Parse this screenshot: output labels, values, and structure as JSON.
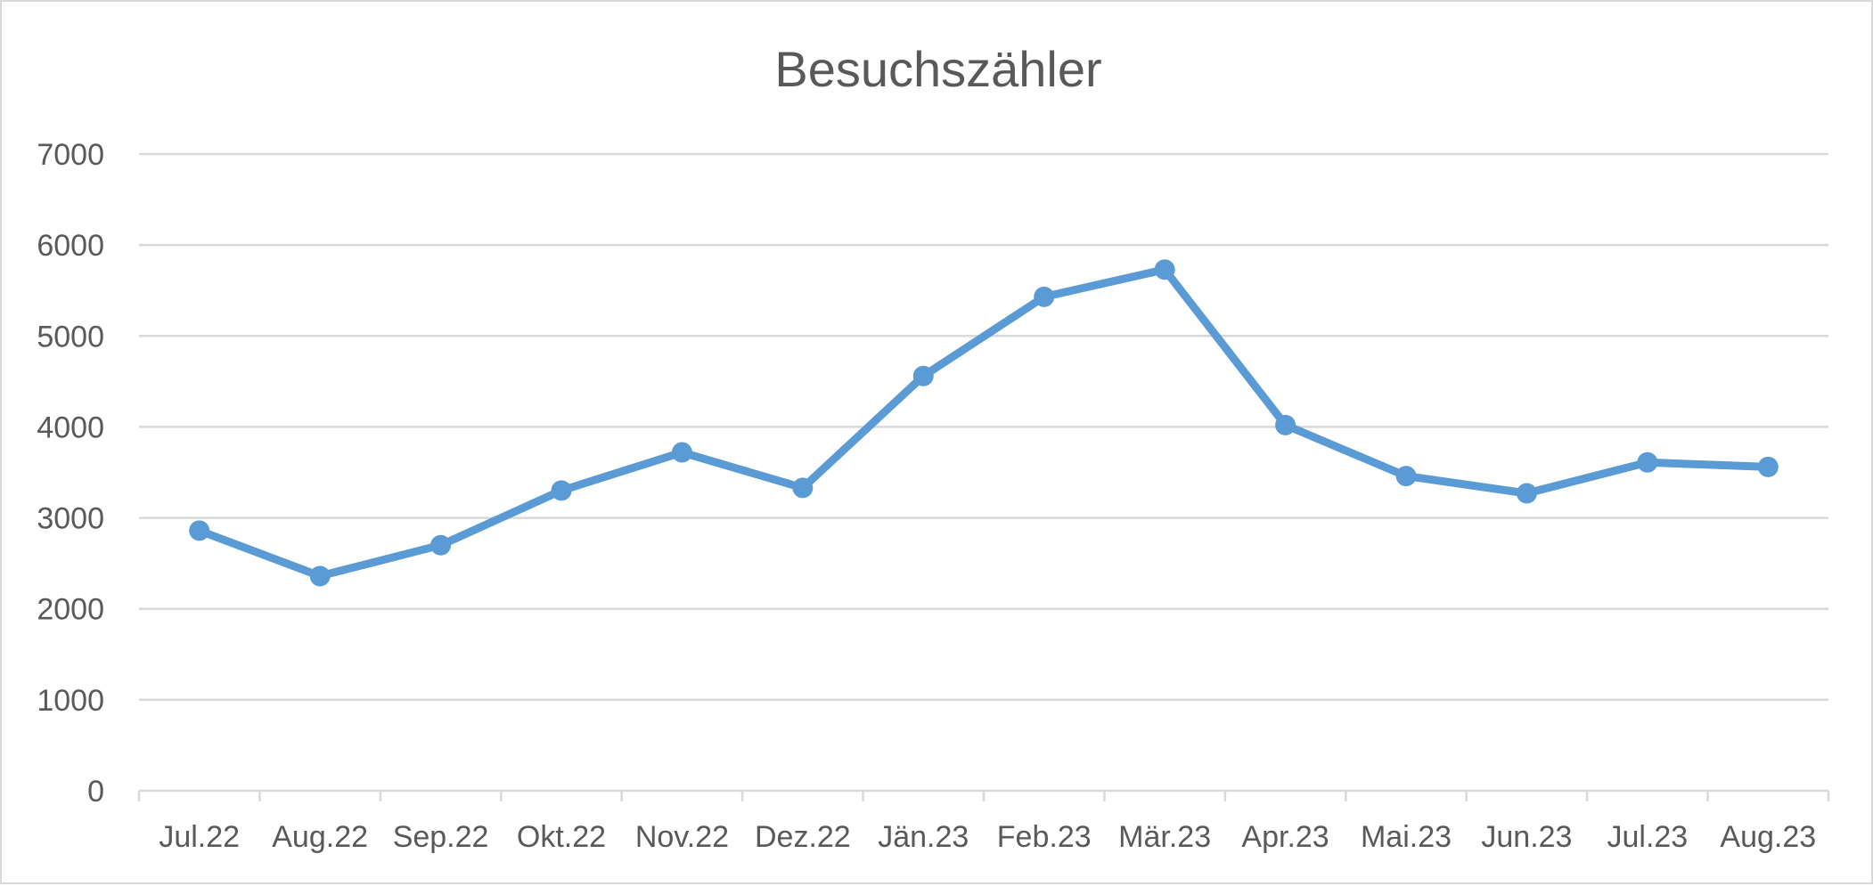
{
  "chart_data": {
    "type": "line",
    "title": "Besuchszähler",
    "xlabel": "",
    "ylabel": "",
    "categories": [
      "Jul.22",
      "Aug.22",
      "Sep.22",
      "Okt.22",
      "Nov.22",
      "Dez.22",
      "Jän.23",
      "Feb.23",
      "Mär.23",
      "Apr.23",
      "Mai.23",
      "Jun.23",
      "Jul.23",
      "Aug.23"
    ],
    "series": [
      {
        "values": [
          2860,
          2360,
          2700,
          3300,
          3720,
          3330,
          4560,
          5430,
          5730,
          4020,
          3460,
          3270,
          3610,
          3560
        ],
        "color": "#5b9bd5",
        "marker": "circle"
      }
    ],
    "ylim": [
      0,
      7000
    ],
    "yticks": [
      "0",
      "1000",
      "2000",
      "3000",
      "4000",
      "5000",
      "6000",
      "7000"
    ],
    "grid": true,
    "legend": "none",
    "colors": {
      "line": "#5b9bd5",
      "grid": "#d9d9d9",
      "text": "#595959",
      "border": "#d9d9d9"
    }
  }
}
